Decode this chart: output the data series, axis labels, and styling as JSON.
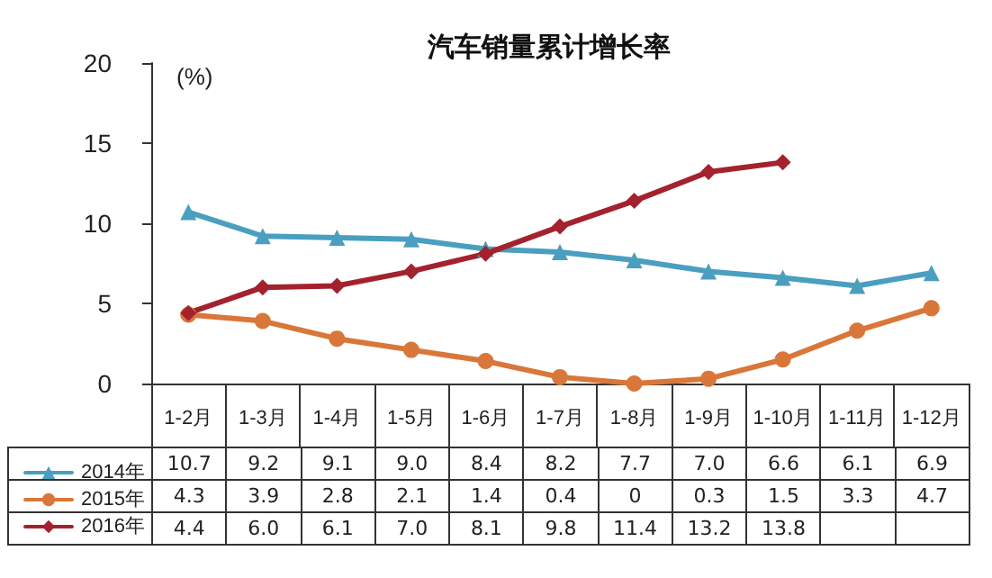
{
  "chart_data": {
    "type": "line",
    "title": "汽车销量累计增长率",
    "ylabel": "(%)",
    "categories": [
      "1-2月",
      "1-3月",
      "1-4月",
      "1-5月",
      "1-6月",
      "1-7月",
      "1-8月",
      "1-9月",
      "1-10月",
      "1-11月",
      "1-12月"
    ],
    "series": [
      {
        "name": "2014年",
        "color": "#4a9fc0",
        "marker": "triangle",
        "values": [
          10.7,
          9.2,
          9.1,
          9.0,
          8.4,
          8.2,
          7.7,
          7.0,
          6.6,
          6.1,
          6.9
        ],
        "value_labels": [
          "10.7",
          "9.2",
          "9.1",
          "9.0",
          "8.4",
          "8.2",
          "7.7",
          "7.0",
          "6.6",
          "6.1",
          "6.9"
        ]
      },
      {
        "name": "2015年",
        "color": "#d9773a",
        "marker": "circle",
        "values": [
          4.3,
          3.9,
          2.8,
          2.1,
          1.4,
          0.4,
          0,
          0.3,
          1.5,
          3.3,
          4.7
        ],
        "value_labels": [
          "4.3",
          "3.9",
          "2.8",
          "2.1",
          "1.4",
          "0.4",
          "0",
          "0.3",
          "1.5",
          "3.3",
          "4.7"
        ]
      },
      {
        "name": "2016年",
        "color": "#a3222e",
        "marker": "diamond",
        "values": [
          4.4,
          6.0,
          6.1,
          7.0,
          8.1,
          9.8,
          11.4,
          13.2,
          13.8,
          null,
          null
        ],
        "value_labels": [
          "4.4",
          "6.0",
          "6.1",
          "7.0",
          "8.1",
          "9.8",
          "11.4",
          "13.2",
          "13.8",
          null,
          null
        ]
      }
    ],
    "ylim": [
      0,
      20
    ],
    "yticks": [
      0,
      5,
      10,
      15,
      20
    ],
    "grid": false,
    "legend": "bottom left"
  }
}
